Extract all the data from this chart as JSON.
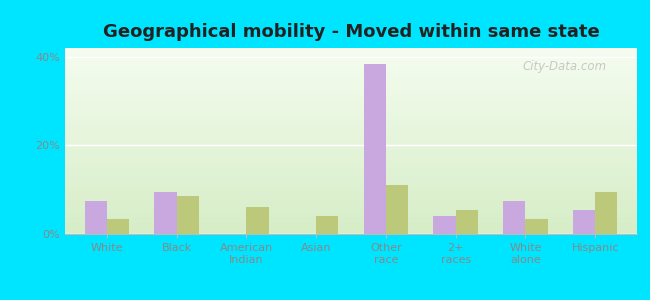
{
  "title": "Geographical mobility - Moved within same state",
  "categories": [
    "White",
    "Black",
    "American\nIndian",
    "Asian",
    "Other\nrace",
    "2+\nraces",
    "White\nalone",
    "Hispanic"
  ],
  "wahpeton_values": [
    7.5,
    9.5,
    0.0,
    0.0,
    38.5,
    4.0,
    7.5,
    5.5
  ],
  "north_dakota_values": [
    3.5,
    8.5,
    6.0,
    4.0,
    11.0,
    5.5,
    3.5,
    9.5
  ],
  "wahpeton_color": "#c9a8e0",
  "north_dakota_color": "#bcc87a",
  "ylim": [
    0,
    42
  ],
  "yticks": [
    0,
    20,
    40
  ],
  "ytick_labels": [
    "0%",
    "20%",
    "40%"
  ],
  "outer_bg": "#00e5ff",
  "bar_width": 0.32,
  "watermark": "City-Data.com",
  "title_fontsize": 13,
  "tick_fontsize": 8,
  "legend_fontsize": 9
}
